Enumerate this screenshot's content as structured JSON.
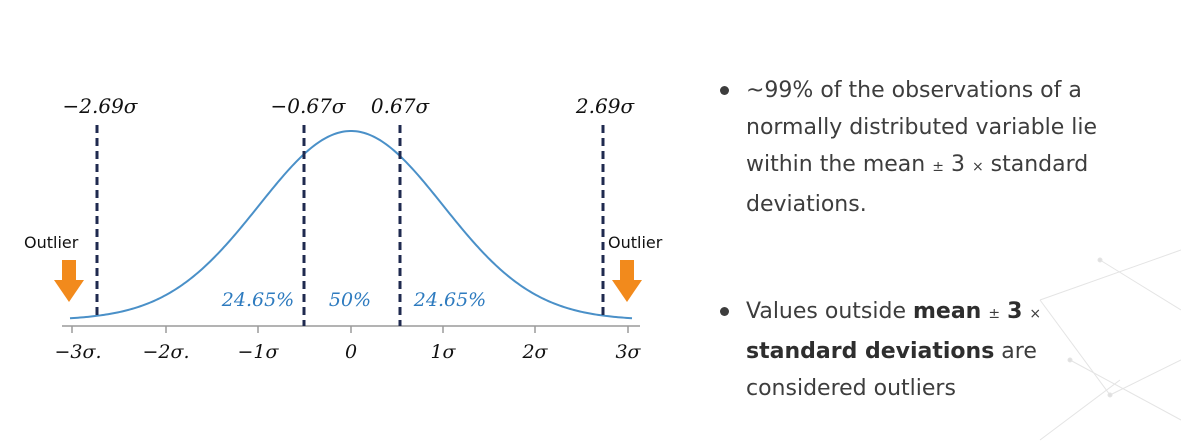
{
  "diagram": {
    "x_ticks": [
      "−3σ.",
      "−2σ.",
      "−1σ",
      "0",
      "1σ",
      "2σ",
      "3σ"
    ],
    "markers": [
      "−2.69σ",
      "−0.67σ",
      "0.67σ",
      "2.69σ"
    ],
    "regions": [
      "24.65%",
      "50%",
      "24.65%"
    ],
    "outlier_left": "Outlier",
    "outlier_right": "Outlier",
    "colors": {
      "curve": "#4a90c8",
      "dashed": "#1f2a4f",
      "arrow": "#f28a1c",
      "percent_text": "#2e7bbf"
    }
  },
  "bullets": {
    "b1_text": "~99% of the observations of a normally distributed variable lie within the mean ",
    "b1_pm": "±",
    "b1_three": " 3 ",
    "b1_times": "×",
    "b1_tail": " standard deviations.",
    "b2_pre": "Values outside ",
    "b2_mean": "mean",
    "b2_pm": "±",
    "b2_three": "3",
    "b2_times": "×",
    "b2_sd": "standard deviations",
    "b2_tail": " are considered outliers"
  }
}
